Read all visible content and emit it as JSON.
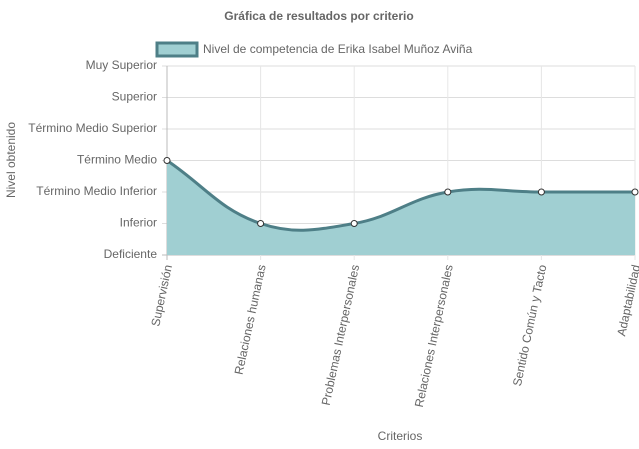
{
  "chart_data": {
    "type": "area",
    "title": "Gráfica de resultados por criterio",
    "x_label": "Criterios",
    "y_label": "Nivel obtenido",
    "categories": [
      "Supervisión",
      "Relaciones humanas",
      "Problemas Interpersonales",
      "Relaciones Interpersonales",
      "Sentido Común y Tacto",
      "Adaptabilidad"
    ],
    "series": [
      {
        "name": "Nivel de competencia de Erika Isabel Muñoz Aviña",
        "color": "#4e7f87",
        "fill": "#a0cfd2",
        "values": [
          3,
          1,
          1,
          2,
          2,
          2
        ]
      }
    ],
    "ylim": [
      0,
      6
    ],
    "yticks": [
      {
        "value": 0,
        "label": "Deficiente"
      },
      {
        "value": 1,
        "label": "Inferior"
      },
      {
        "value": 2,
        "label": "Término Medio Inferior"
      },
      {
        "value": 3,
        "label": "Término Medio"
      },
      {
        "value": 4,
        "label": "Término Medio Superior"
      },
      {
        "value": 5,
        "label": "Superior"
      },
      {
        "value": 6,
        "label": "Muy Superior"
      }
    ],
    "grid": true,
    "legend": "top"
  }
}
